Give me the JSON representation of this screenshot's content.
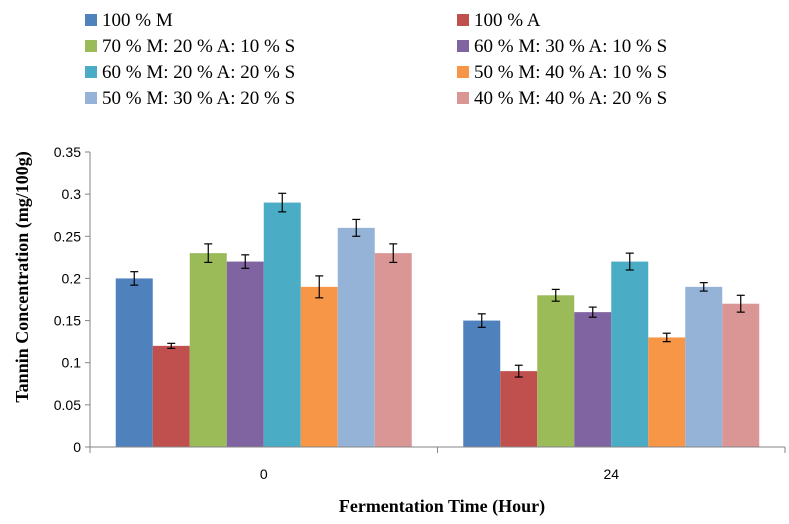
{
  "chart_data": {
    "type": "bar",
    "title": "",
    "xlabel": "Fermentation Time  (Hour)",
    "ylabel": "Tannin  Concentration  (mg/100g)",
    "categories": [
      "0",
      "24"
    ],
    "ylim": [
      0,
      0.35
    ],
    "yticks": [
      "0",
      "0.05",
      "0.1",
      "0.15",
      "0.2",
      "0.25",
      "0.3",
      "0.35"
    ],
    "grid": false,
    "legend_position": "top",
    "series": [
      {
        "name": "100 % M",
        "color": "#4F81BD",
        "values": [
          0.2,
          0.15
        ],
        "error": [
          0.008,
          0.008
        ]
      },
      {
        "name": "100 % A",
        "color": "#C0504D",
        "values": [
          0.12,
          0.09
        ],
        "error": [
          0.003,
          0.007
        ]
      },
      {
        "name": "70 % M: 20 % A: 10 % S",
        "color": "#9BBB59",
        "values": [
          0.23,
          0.18
        ],
        "error": [
          0.011,
          0.007
        ]
      },
      {
        "name": "60 % M: 30 % A: 10 % S",
        "color": "#8064A2",
        "values": [
          0.22,
          0.16
        ],
        "error": [
          0.008,
          0.006
        ]
      },
      {
        "name": "60 % M: 20 % A: 20 % S",
        "color": "#4BACC6",
        "values": [
          0.29,
          0.22
        ],
        "error": [
          0.011,
          0.01
        ]
      },
      {
        "name": "50 % M: 40 % A: 10 % S",
        "color": "#F79646",
        "values": [
          0.19,
          0.13
        ],
        "error": [
          0.013,
          0.005
        ]
      },
      {
        "name": "50 % M: 30 % A: 20 % S",
        "color": "#95B3D7",
        "values": [
          0.26,
          0.19
        ],
        "error": [
          0.01,
          0.005
        ]
      },
      {
        "name": "40 % M: 40 % A: 20 % S",
        "color": "#D99694",
        "values": [
          0.23,
          0.17
        ],
        "error": [
          0.011,
          0.01
        ]
      }
    ]
  }
}
